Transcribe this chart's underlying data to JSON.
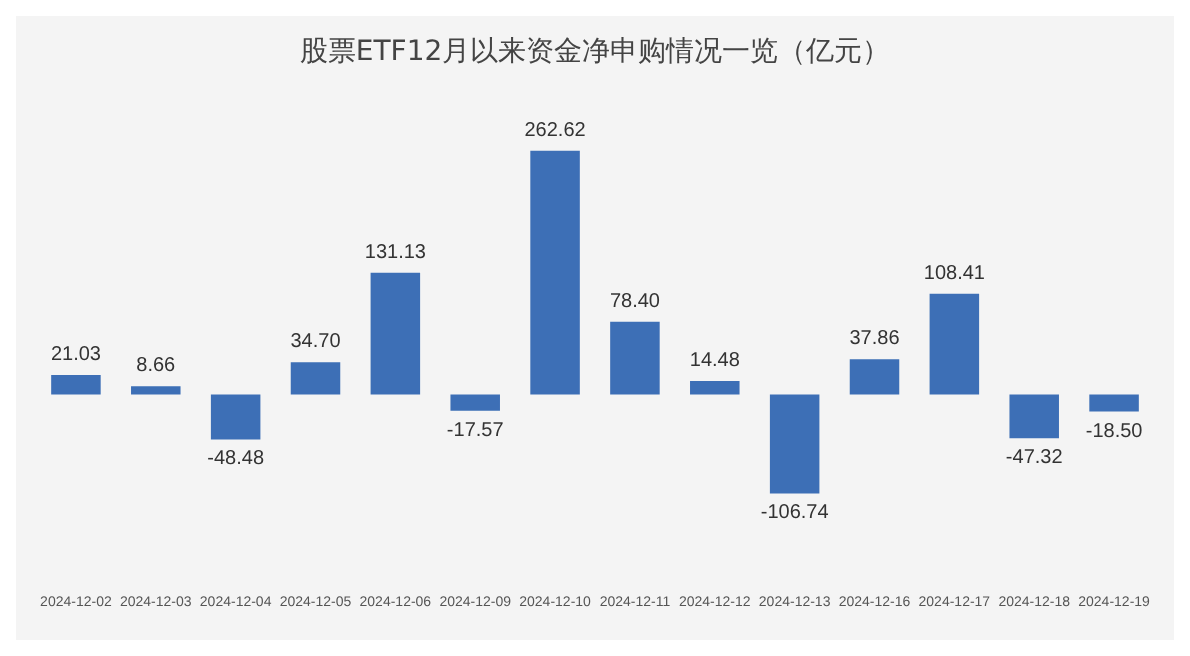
{
  "chart_data": {
    "type": "bar",
    "title": "股票ETF12月以来资金净申购情况一览（亿元）",
    "categories": [
      "2024-12-02",
      "2024-12-03",
      "2024-12-04",
      "2024-12-05",
      "2024-12-06",
      "2024-12-09",
      "2024-12-10",
      "2024-12-11",
      "2024-12-12",
      "2024-12-13",
      "2024-12-16",
      "2024-12-17",
      "2024-12-18",
      "2024-12-19"
    ],
    "values": [
      21.03,
      8.66,
      -48.48,
      34.7,
      131.13,
      -17.57,
      262.62,
      78.4,
      14.48,
      -106.74,
      37.86,
      108.41,
      -47.32,
      -18.5
    ],
    "value_labels": [
      "21.03",
      "8.66",
      "-48.48",
      "34.70",
      "131.13",
      "-17.57",
      "262.62",
      "78.40",
      "14.48",
      "-106.74",
      "37.86",
      "108.41",
      "-47.32",
      "-18.50"
    ],
    "color": "#3d6fb6",
    "data_labels": true
  }
}
